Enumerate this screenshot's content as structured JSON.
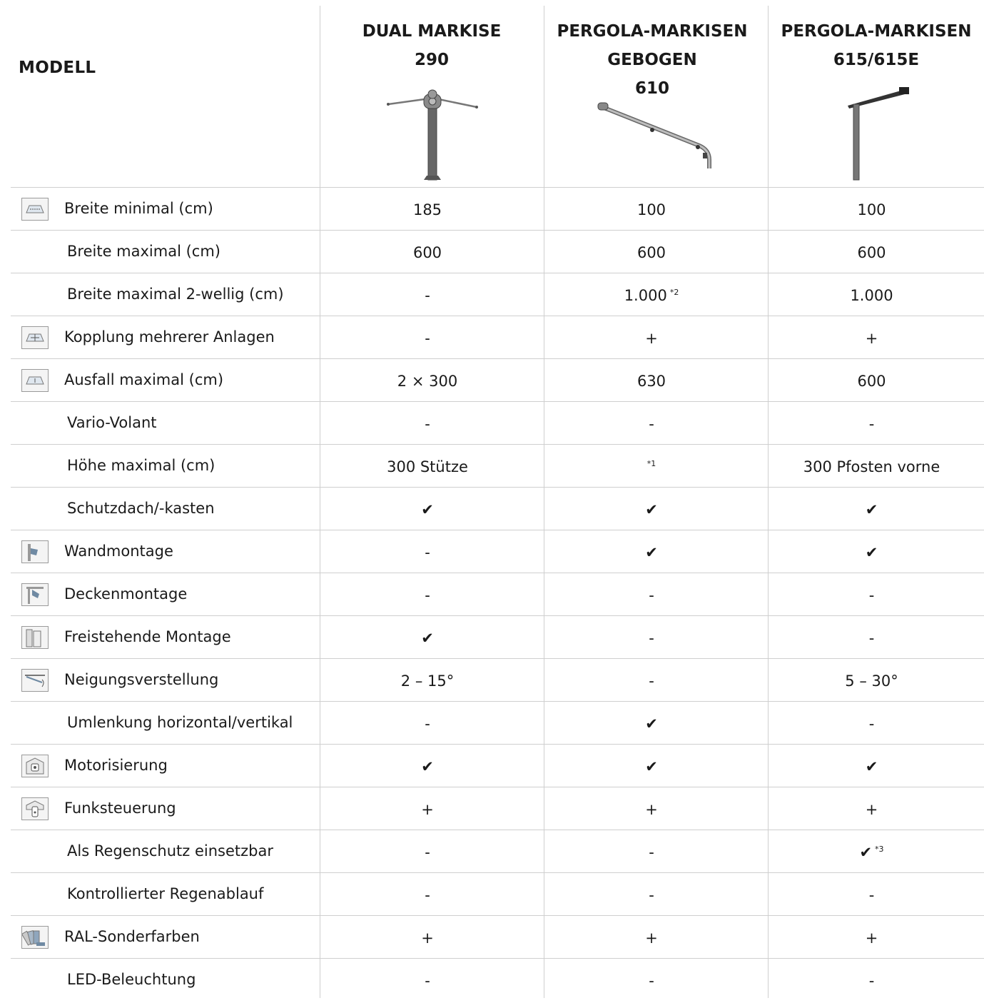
{
  "header": {
    "modell_label": "MODELL",
    "columns": [
      {
        "line1": "DUAL MARKISE",
        "line2": "290",
        "line3": ""
      },
      {
        "line1": "PERGOLA-MARKISEN",
        "line2": "GEBOGEN",
        "line3": "610"
      },
      {
        "line1": "PERGOLA-MARKISEN",
        "line2": "615/615E",
        "line3": ""
      }
    ]
  },
  "rows": [
    {
      "label": "Breite minimal (cm)",
      "icon": "width-min-icon",
      "values": [
        "185",
        "100",
        "100"
      ],
      "sups": [
        "",
        "",
        ""
      ]
    },
    {
      "label": "Breite maximal (cm)",
      "icon": "",
      "values": [
        "600",
        "600",
        "600"
      ],
      "sups": [
        "",
        "",
        ""
      ]
    },
    {
      "label": "Breite maximal 2-wellig (cm)",
      "icon": "",
      "values": [
        "-",
        "1.000",
        "1.000"
      ],
      "sups": [
        "",
        "*2",
        ""
      ]
    },
    {
      "label": "Kopplung mehrerer Anlagen",
      "icon": "coupling-icon",
      "values": [
        "-",
        "+",
        "+"
      ],
      "sups": [
        "",
        "",
        ""
      ]
    },
    {
      "label": "Ausfall maximal (cm)",
      "icon": "projection-icon",
      "values": [
        "2 × 300",
        "630",
        "600"
      ],
      "sups": [
        "",
        "",
        ""
      ]
    },
    {
      "label": "Vario-Volant",
      "icon": "",
      "values": [
        "-",
        "-",
        "-"
      ],
      "sups": [
        "",
        "",
        ""
      ]
    },
    {
      "label": "Höhe maximal (cm)",
      "icon": "",
      "values": [
        "300 Stütze",
        "",
        "300 Pfosten vorne"
      ],
      "sups": [
        "",
        "*1",
        ""
      ]
    },
    {
      "label": "Schutzdach/-kasten",
      "icon": "",
      "values": [
        "✔",
        "✔",
        "✔"
      ],
      "sups": [
        "",
        "",
        ""
      ]
    },
    {
      "label": "Wandmontage",
      "icon": "wall-mount-icon",
      "values": [
        "-",
        "✔",
        "✔"
      ],
      "sups": [
        "",
        "",
        ""
      ]
    },
    {
      "label": "Deckenmontage",
      "icon": "ceiling-mount-icon",
      "values": [
        "-",
        "-",
        "-"
      ],
      "sups": [
        "",
        "",
        ""
      ]
    },
    {
      "label": "Freistehende Montage",
      "icon": "freestanding-icon",
      "values": [
        "✔",
        "-",
        "-"
      ],
      "sups": [
        "",
        "",
        ""
      ]
    },
    {
      "label": "Neigungsverstellung",
      "icon": "tilt-icon",
      "values": [
        "2 – 15°",
        "-",
        "5 – 30°"
      ],
      "sups": [
        "",
        "",
        ""
      ]
    },
    {
      "label": "Umlenkung horizontal/vertikal",
      "icon": "",
      "values": [
        "-",
        "✔",
        "-"
      ],
      "sups": [
        "",
        "",
        ""
      ]
    },
    {
      "label": "Motorisierung",
      "icon": "motor-icon",
      "values": [
        "✔",
        "✔",
        "✔"
      ],
      "sups": [
        "",
        "",
        ""
      ]
    },
    {
      "label": "Funksteuerung",
      "icon": "remote-control-icon",
      "values": [
        "+",
        "+",
        "+"
      ],
      "sups": [
        "",
        "",
        ""
      ]
    },
    {
      "label": "Als Regenschutz einsetzbar",
      "icon": "",
      "values": [
        "-",
        "-",
        "✔"
      ],
      "sups": [
        "",
        "",
        "*3"
      ]
    },
    {
      "label": "Kontrollierter Regenablauf",
      "icon": "",
      "values": [
        "-",
        "-",
        "-"
      ],
      "sups": [
        "",
        "",
        ""
      ]
    },
    {
      "label": "RAL-Sonderfarben",
      "icon": "ral-colors-icon",
      "values": [
        "+",
        "+",
        "+"
      ],
      "sups": [
        "",
        "",
        ""
      ]
    },
    {
      "label": "LED-Beleuchtung",
      "icon": "",
      "values": [
        "-",
        "-",
        "-"
      ],
      "sups": [
        "",
        "",
        ""
      ]
    }
  ]
}
